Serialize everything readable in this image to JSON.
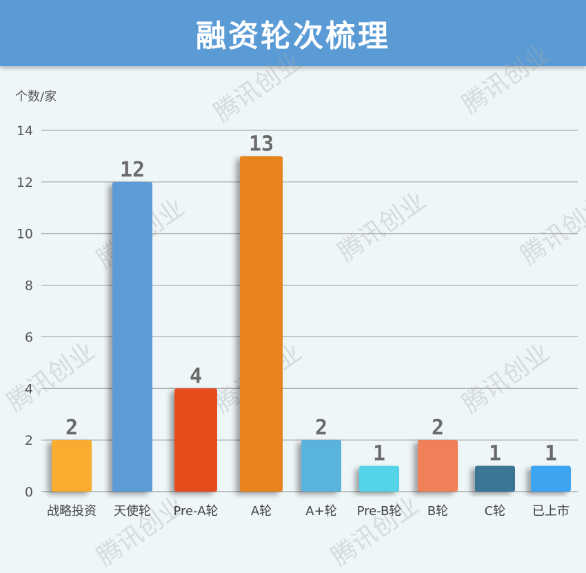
{
  "banner": {
    "title": "融资轮次梳理"
  },
  "watermark": "腾讯创业",
  "chart_data": {
    "type": "bar",
    "title": "融资轮次梳理",
    "ylabel": "个数/家",
    "xlabel": "",
    "ylim": [
      0,
      14
    ],
    "yticks": [
      0,
      2,
      4,
      6,
      8,
      10,
      12,
      14
    ],
    "grid": true,
    "categories": [
      "战略投资",
      "天使轮",
      "Pre-A轮",
      "A轮",
      "A+轮",
      "Pre-B轮",
      "B轮",
      "C轮",
      "已上市"
    ],
    "values": [
      2,
      12,
      4,
      13,
      2,
      1,
      2,
      1,
      1
    ],
    "colors": [
      "#f9ac2f",
      "#5b9bd5",
      "#e54e1f",
      "#e8821e",
      "#5ab3dd",
      "#55d3e8",
      "#f08058",
      "#3a7694",
      "#3ea4f2"
    ],
    "data_labels": [
      "2",
      "12",
      "4",
      "13",
      "2",
      "1",
      "2",
      "1",
      "1"
    ]
  }
}
